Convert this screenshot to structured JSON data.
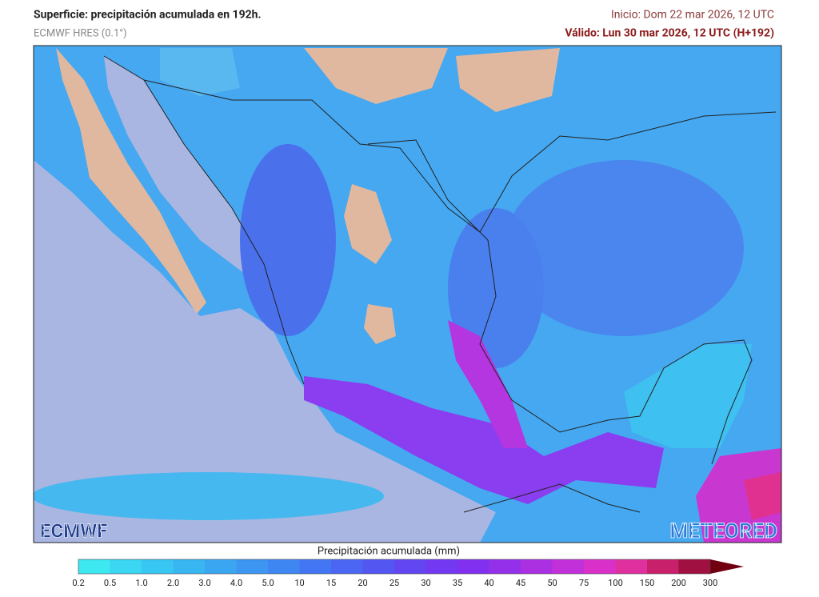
{
  "header": {
    "title": "Superficie: precipitación acumulada en 192h.",
    "model": "ECMWF HRES (0.1°)",
    "init": "Inicio: Dom 22 mar 2026, 12 UTC",
    "valid": "Válido: Lun 30 mar 2026, 12 UTC (H+192)"
  },
  "logos": {
    "left": "ECMWF",
    "right": "METEORED"
  },
  "legend": {
    "title": "Precipitación acumulada (mm)",
    "labels": [
      "0.2",
      "0.5",
      "1.0",
      "2.0",
      "3.0",
      "4.0",
      "5.0",
      "10",
      "15",
      "20",
      "25",
      "30",
      "35",
      "40",
      "45",
      "50",
      "75",
      "100",
      "150",
      "200",
      "300"
    ],
    "colors": [
      "#3ee8f0",
      "#3ad6f2",
      "#38c6f2",
      "#38b6f2",
      "#3aa6f2",
      "#3c96f2",
      "#3e86f2",
      "#4276f2",
      "#4a66f2",
      "#5456f2",
      "#6246f2",
      "#7238f2",
      "#8230f0",
      "#9430ea",
      "#aa30e2",
      "#c230da",
      "#d830c8",
      "#e030a0",
      "#c8206a",
      "#a01040",
      "#700010"
    ]
  }
}
